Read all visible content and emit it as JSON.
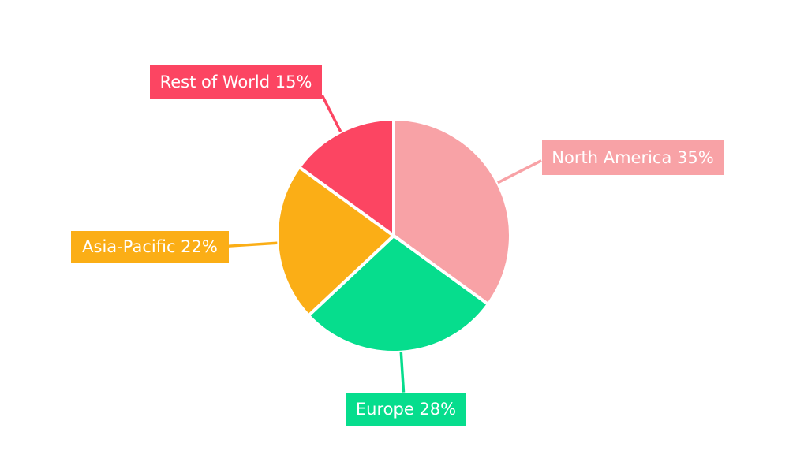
{
  "chart_data": {
    "type": "pie",
    "categories": [
      "North America",
      "Europe",
      "Asia-Pacific",
      "Rest of World"
    ],
    "values": [
      35,
      28,
      22,
      15
    ],
    "unit": "%",
    "start_angle_deg": -90,
    "direction": "clockwise",
    "legend_position": "callout-labels",
    "background_color": "#FFFFFF",
    "slice_gap_color": "#FFFFFF",
    "slices": [
      {
        "id": "north-america",
        "label": "North America",
        "value": 35,
        "display": "North America 35%",
        "color": "#F8A2A6"
      },
      {
        "id": "europe",
        "label": "Europe",
        "value": 28,
        "display": "Europe 28%",
        "color": "#06DD8D"
      },
      {
        "id": "asia-pacific",
        "label": "Asia-Pacific",
        "value": 22,
        "display": "Asia-Pacific 22%",
        "color": "#FBAE16"
      },
      {
        "id": "rest-of-world",
        "label": "Rest of World",
        "value": 15,
        "display": "Rest of World 15%",
        "color": "#FC4562"
      }
    ],
    "label_text_color": "#FFFFFF"
  }
}
